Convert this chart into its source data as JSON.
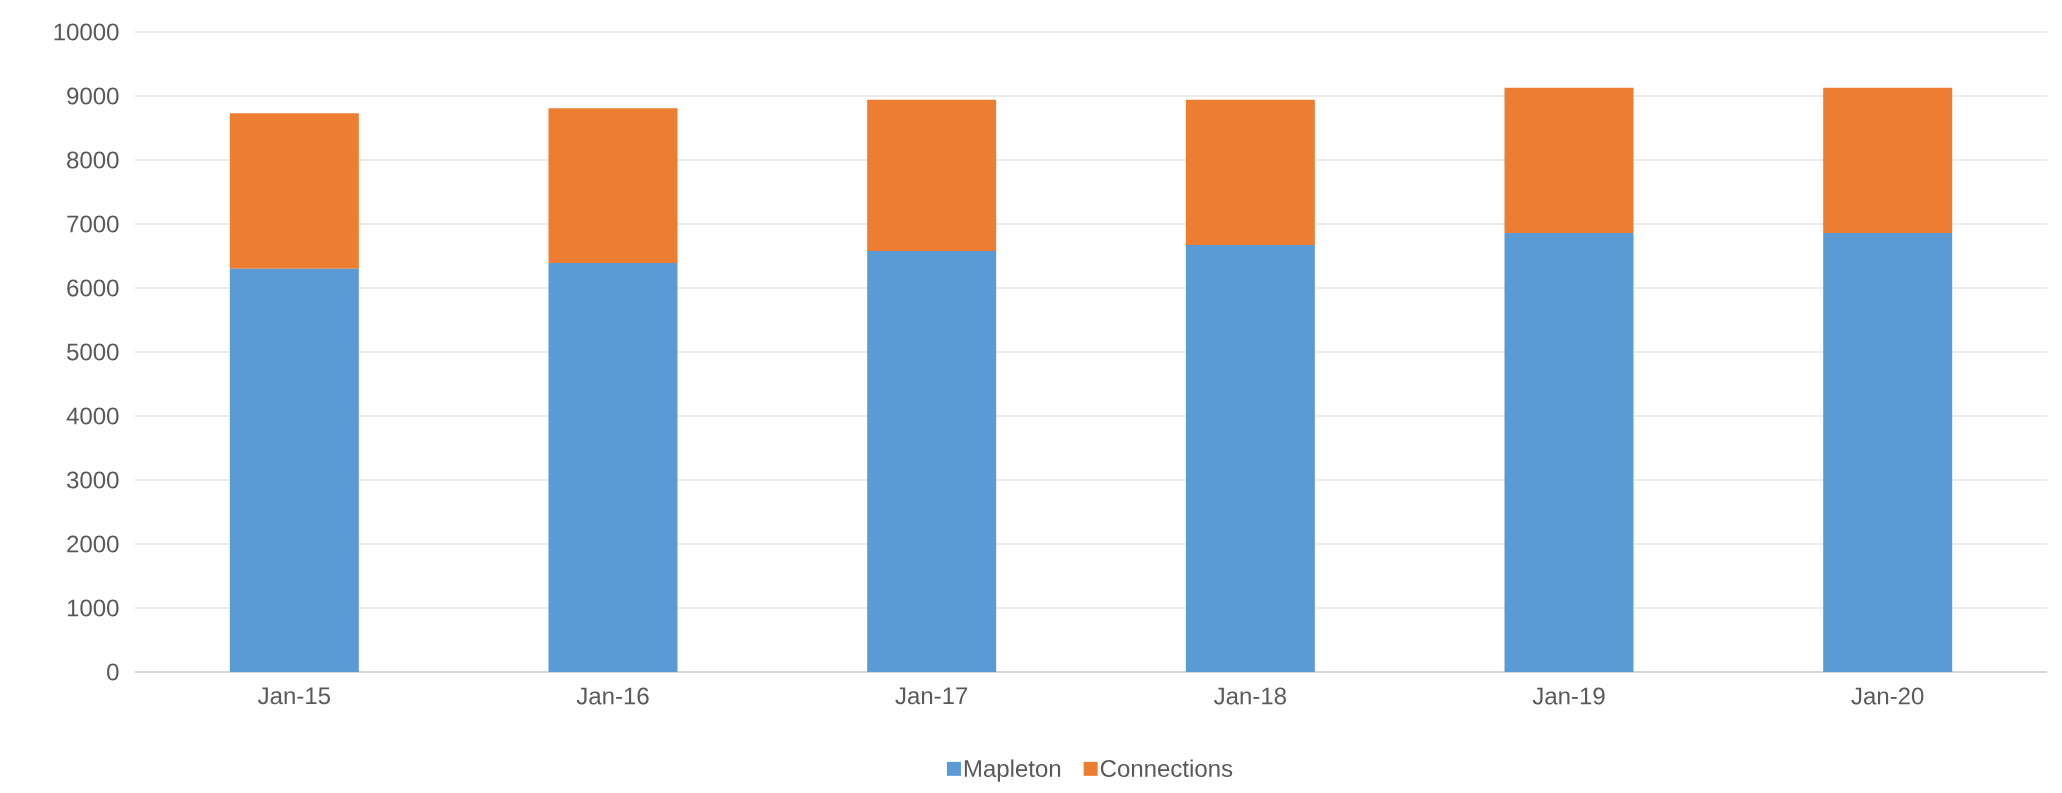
{
  "chart_data": {
    "type": "bar",
    "stacked": true,
    "categories": [
      "Jan-15",
      "Jan-16",
      "Jan-17",
      "Jan-18",
      "Jan-19",
      "Jan-20"
    ],
    "series": [
      {
        "name": "Mapleton",
        "color": "#5b9bd5",
        "values": [
          6300,
          6390,
          6580,
          6670,
          6860,
          6860
        ]
      },
      {
        "name": "Connections",
        "color": "#ed7d31",
        "values": [
          2430,
          2420,
          2360,
          2270,
          2270,
          2270
        ]
      }
    ],
    "ylim": [
      0,
      10000
    ],
    "yticks": [
      0,
      1000,
      2000,
      3000,
      4000,
      5000,
      6000,
      7000,
      8000,
      9000,
      10000
    ],
    "grid": "y",
    "legend": "bottom"
  }
}
